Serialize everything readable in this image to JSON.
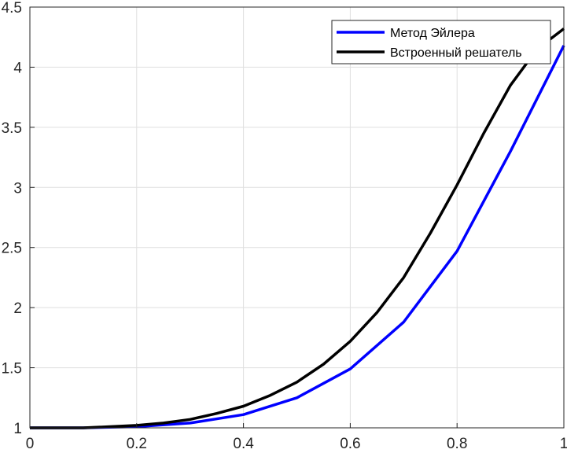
{
  "chart_data": {
    "type": "line",
    "title": "",
    "xlabel": "",
    "ylabel": "",
    "xlim": [
      0,
      1
    ],
    "ylim": [
      1,
      4.5
    ],
    "grid": true,
    "legend_position": "top-right",
    "xticks": [
      0,
      0.2,
      0.4,
      0.6,
      0.8,
      1
    ],
    "xtick_labels": [
      "0",
      "0.2",
      "0.4",
      "0.6",
      "0.8",
      "1"
    ],
    "yticks": [
      1,
      1.5,
      2,
      2.5,
      3,
      3.5,
      4,
      4.5
    ],
    "ytick_labels": [
      "1",
      "1.5",
      "2",
      "2.5",
      "3",
      "3.5",
      "4",
      "4.5"
    ],
    "series": [
      {
        "name": "Метод Эйлера",
        "color": "#0000ff",
        "x": [
          0,
          0.1,
          0.2,
          0.3,
          0.4,
          0.5,
          0.6,
          0.7,
          0.8,
          0.9,
          1.0
        ],
        "y": [
          1.0,
          1.0,
          1.01,
          1.04,
          1.11,
          1.25,
          1.49,
          1.88,
          2.47,
          3.3,
          4.18
        ]
      },
      {
        "name": "Встроенный решатель",
        "color": "#000000",
        "x": [
          0,
          0.05,
          0.1,
          0.15,
          0.2,
          0.25,
          0.3,
          0.35,
          0.4,
          0.45,
          0.5,
          0.55,
          0.6,
          0.65,
          0.7,
          0.75,
          0.8,
          0.85,
          0.9,
          0.95,
          1.0
        ],
        "y": [
          1.0,
          1.0,
          1.0,
          1.01,
          1.02,
          1.04,
          1.07,
          1.12,
          1.18,
          1.27,
          1.38,
          1.53,
          1.72,
          1.96,
          2.25,
          2.62,
          3.02,
          3.45,
          3.85,
          4.15,
          4.32
        ]
      }
    ]
  }
}
